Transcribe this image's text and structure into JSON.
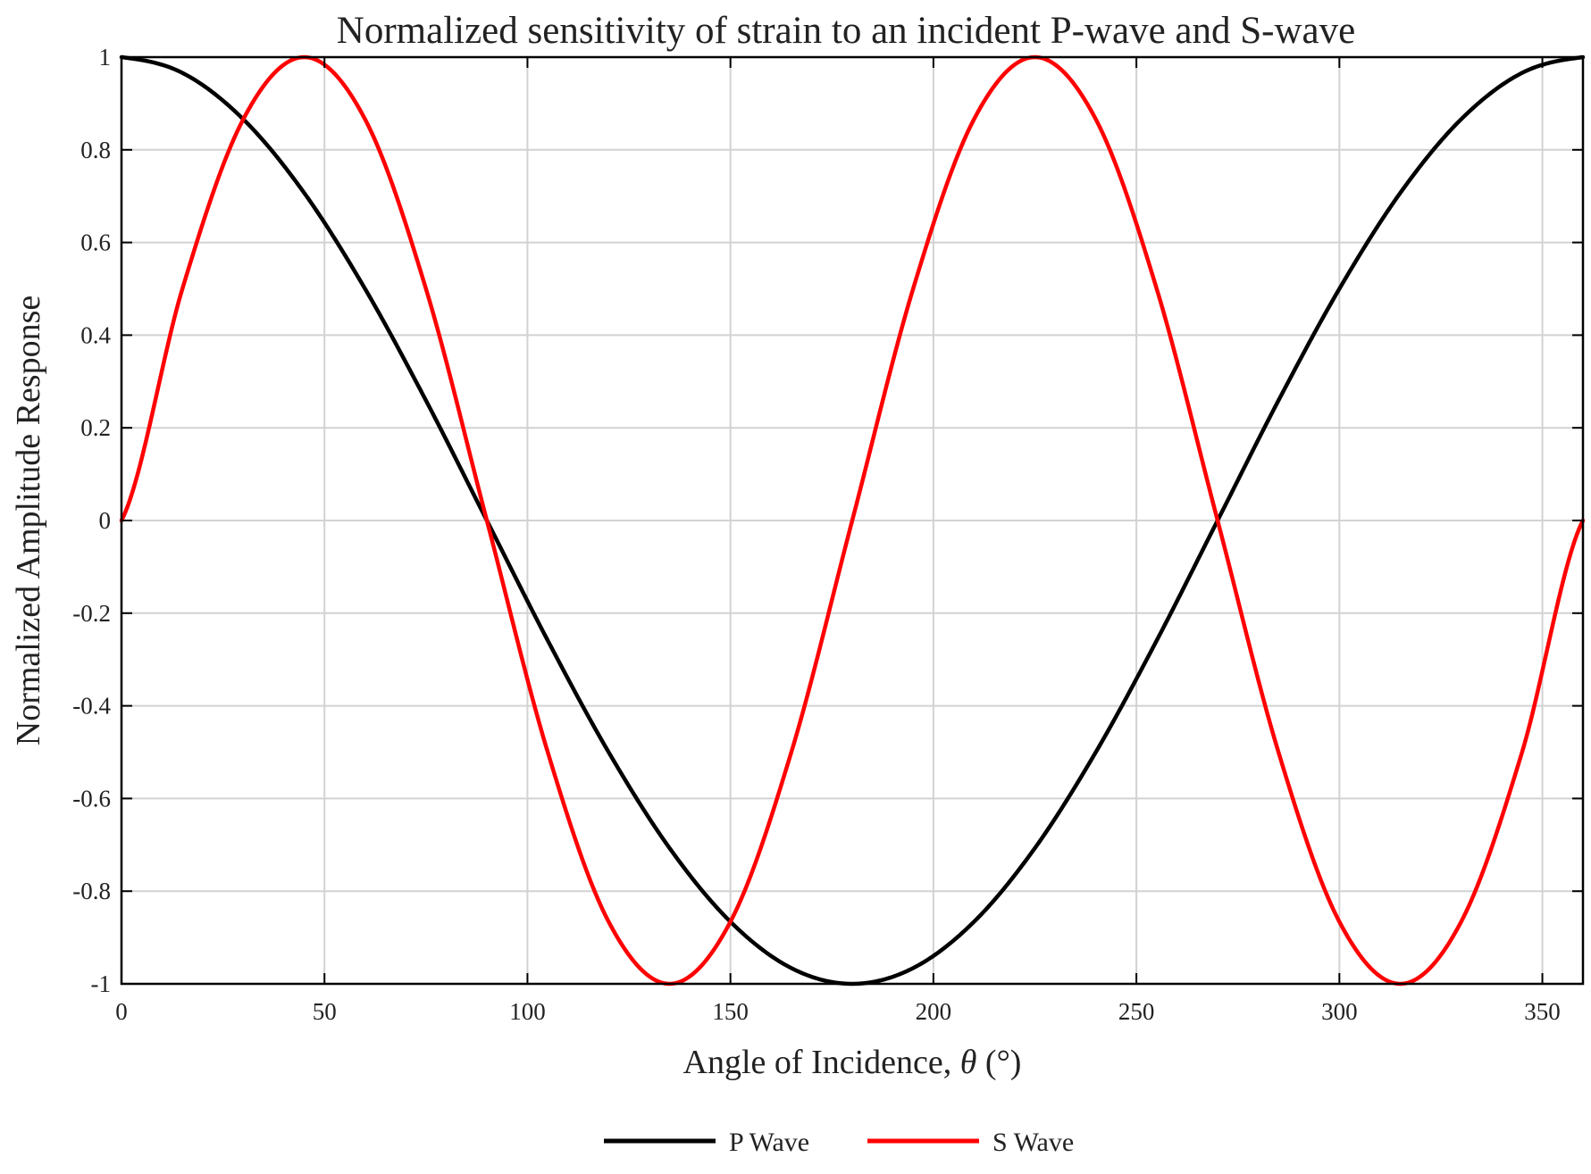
{
  "chart_data": {
    "type": "line",
    "title": "Normalized sensitivity of strain to an incident P-wave and S-wave",
    "xlabel": "Angle of Incidence, θ (°)",
    "xlabel_prefix": "Angle of Incidence, ",
    "xlabel_symbol": "θ",
    "xlabel_suffix": " (°)",
    "ylabel": "Normalized Amplitude Response",
    "xlim": [
      0,
      360
    ],
    "ylim": [
      -1,
      1
    ],
    "grid": true,
    "legend_position": "bottom-center",
    "x_ticks": [
      0,
      50,
      100,
      150,
      200,
      250,
      300,
      350
    ],
    "x_tick_labels": [
      "0",
      "50",
      "100",
      "150",
      "200",
      "250",
      "300",
      "350"
    ],
    "y_ticks": [
      1,
      0.8,
      0.6,
      0.4,
      0.2,
      0,
      -0.2,
      -0.4,
      -0.6,
      -0.8,
      -1
    ],
    "y_tick_labels": [
      "1",
      "0.8",
      "0.6",
      "0.4",
      "0.2",
      "0",
      "-0.2",
      "-0.4",
      "-0.6",
      "-0.8",
      "-1"
    ],
    "series": [
      {
        "name": "P Wave",
        "color": "#000000",
        "x": [
          0,
          15,
          30,
          45,
          60,
          75,
          90,
          105,
          120,
          135,
          150,
          165,
          180,
          195,
          210,
          225,
          240,
          255,
          270,
          285,
          300,
          315,
          330,
          345,
          360
        ],
        "y": [
          1,
          0.966,
          0.866,
          0.707,
          0.5,
          0.259,
          0,
          -0.259,
          -0.5,
          -0.707,
          -0.866,
          -0.966,
          -1,
          -0.966,
          -0.866,
          -0.707,
          -0.5,
          -0.259,
          0,
          0.259,
          0.5,
          0.707,
          0.866,
          0.966,
          1
        ]
      },
      {
        "name": "S Wave",
        "color": "#ff0000",
        "x": [
          0,
          15,
          30,
          45,
          60,
          75,
          90,
          105,
          120,
          135,
          150,
          165,
          180,
          195,
          210,
          225,
          240,
          255,
          270,
          285,
          300,
          315,
          330,
          345,
          360
        ],
        "y": [
          0,
          0.5,
          0.866,
          1,
          0.866,
          0.5,
          0,
          -0.5,
          -0.866,
          -1,
          -0.866,
          -0.5,
          0,
          0.5,
          0.866,
          1,
          0.866,
          0.5,
          0,
          -0.5,
          -0.866,
          -1,
          -0.866,
          -0.5,
          0
        ]
      }
    ]
  }
}
